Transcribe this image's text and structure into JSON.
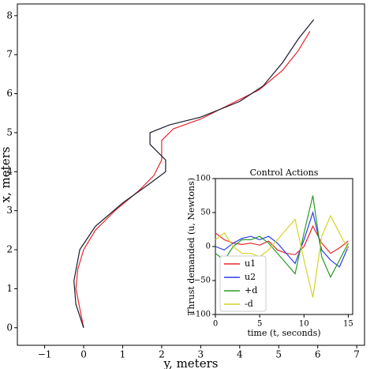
{
  "chart_data": [
    {
      "type": "line",
      "xlabel": "y, meters",
      "ylabel": "x, meters",
      "xlim": [
        -1.7,
        7.2
      ],
      "ylim": [
        -0.45,
        8.3
      ],
      "xticks": [
        {
          "value": -1,
          "label": "−1"
        },
        0,
        1,
        2,
        3,
        4,
        5,
        6,
        7
      ],
      "yticks": [
        0,
        1,
        2,
        3,
        4,
        5,
        6,
        7,
        8
      ],
      "series": [
        {
          "color": "#e8262a",
          "x": [
            0,
            -0.1,
            -0.2,
            -0.15,
            0,
            0.3,
            0.8,
            1.4,
            1.8,
            2.0,
            2.0,
            2.3,
            3.0,
            3.8,
            4.5,
            5.1,
            5.5,
            5.8
          ],
          "values": [
            0,
            0.5,
            1,
            1.5,
            2,
            2.5,
            3,
            3.5,
            3.9,
            4.3,
            4.8,
            5.1,
            5.35,
            5.75,
            6.1,
            6.6,
            7.1,
            7.6
          ]
        },
        {
          "color": "#1a1a2e",
          "x": [
            0,
            -0.2,
            -0.25,
            -0.1,
            0.3,
            1.0,
            1.7,
            2.1,
            2.1,
            1.7,
            1.7,
            2.2,
            3.0,
            4.0,
            4.6,
            5.1,
            5.5,
            5.9
          ],
          "values": [
            0,
            0.6,
            1.2,
            2,
            2.6,
            3.2,
            3.7,
            4.0,
            4.3,
            4.7,
            5.0,
            5.2,
            5.4,
            5.8,
            6.2,
            6.8,
            7.4,
            7.9
          ]
        }
      ]
    },
    {
      "type": "line",
      "title": "Control Actions",
      "xlabel": "time (t, seconds)",
      "ylabel": "Thrust demanded (u, Newtons)",
      "xlim": [
        0,
        15.5
      ],
      "ylim": [
        -100,
        100
      ],
      "xticks": [
        0,
        5,
        10,
        15
      ],
      "yticks": [
        {
          "value": -100,
          "label": "−100"
        },
        {
          "value": -50,
          "label": "−50"
        },
        0,
        50,
        100
      ],
      "legend": "lower left",
      "x": [
        0,
        1,
        2,
        3,
        4,
        5,
        6,
        7,
        8,
        9,
        10,
        11,
        12,
        13,
        14,
        15
      ],
      "series": [
        {
          "name": "u1",
          "color": "#e8262a",
          "values": [
            20,
            10,
            5,
            3,
            5,
            2,
            8,
            -5,
            -10,
            -12,
            0,
            30,
            5,
            -10,
            -2,
            8
          ]
        },
        {
          "name": "u2",
          "color": "#2a3ee8",
          "values": [
            0,
            -5,
            5,
            12,
            15,
            10,
            15,
            5,
            -10,
            -25,
            10,
            50,
            -5,
            -20,
            -30,
            0
          ]
        },
        {
          "name": "+d",
          "color": "#2a9a2a",
          "values": [
            -10,
            -20,
            0,
            10,
            10,
            15,
            5,
            -10,
            -25,
            -40,
            20,
            75,
            -15,
            -45,
            -20,
            5
          ]
        },
        {
          "name": "-d",
          "color": "#d4d42a",
          "values": [
            10,
            20,
            0,
            -10,
            -10,
            -15,
            -5,
            10,
            25,
            40,
            -20,
            -75,
            15,
            45,
            20,
            -5
          ]
        }
      ]
    }
  ]
}
